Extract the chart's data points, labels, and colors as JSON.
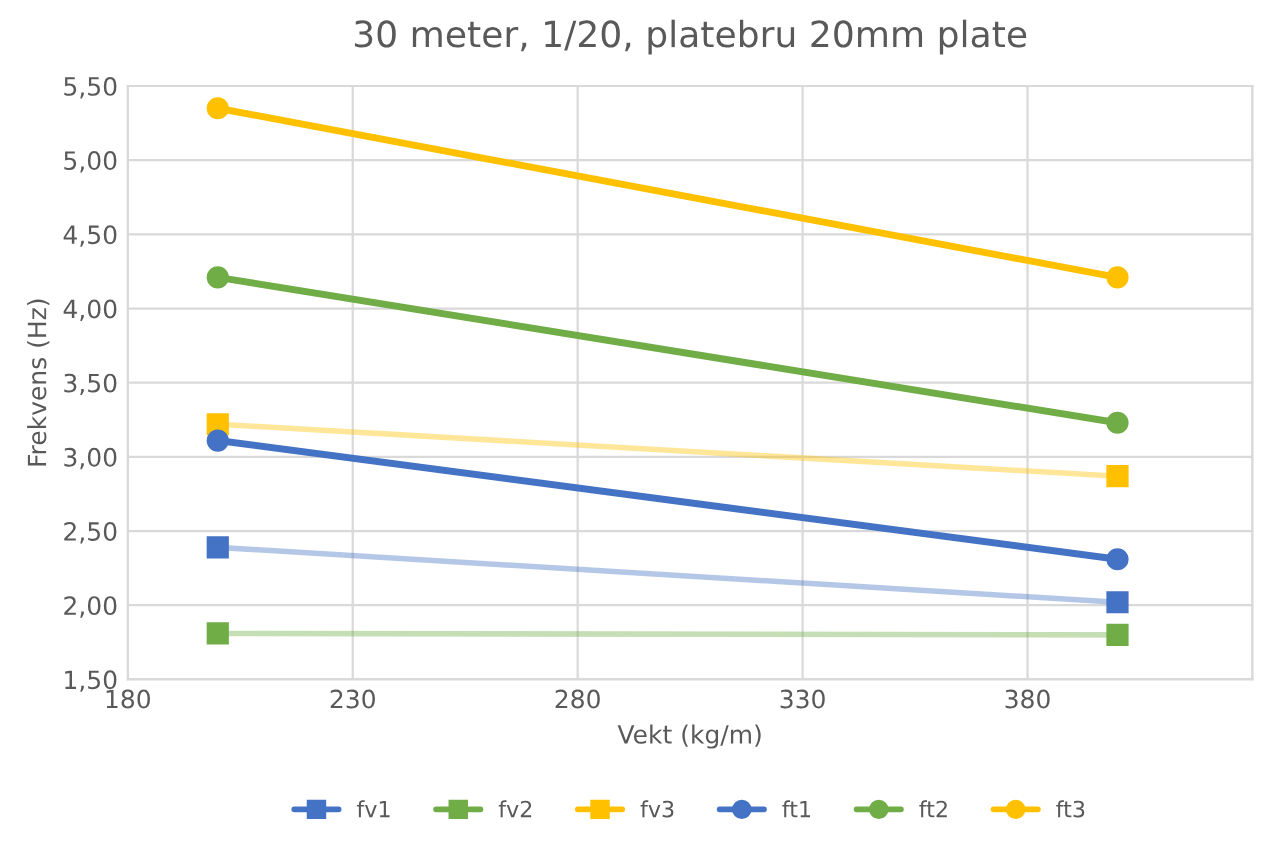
{
  "chart_data": {
    "type": "line",
    "title": "30 meter, 1/20, platebru 20mm plate",
    "xlabel": "Vekt (kg/m)",
    "ylabel": "Frekvens (Hz)",
    "x": [
      200,
      400
    ],
    "series": [
      {
        "name": "fv1",
        "color": "#4472c4",
        "marker": "square",
        "values": [
          2.39,
          2.02
        ]
      },
      {
        "name": "fv2",
        "color": "#70ad47",
        "marker": "square",
        "values": [
          1.81,
          1.8
        ]
      },
      {
        "name": "fv3",
        "color": "#ffc000",
        "marker": "square",
        "values": [
          3.22,
          2.87
        ]
      },
      {
        "name": "ft1",
        "color": "#4472c4",
        "marker": "circle",
        "values": [
          3.11,
          2.31
        ]
      },
      {
        "name": "ft2",
        "color": "#70ad47",
        "marker": "circle",
        "values": [
          4.21,
          3.23
        ]
      },
      {
        "name": "ft3",
        "color": "#ffc000",
        "marker": "circle",
        "values": [
          5.35,
          4.21
        ]
      }
    ],
    "xlim": [
      180,
      430
    ],
    "xticks": [
      180,
      230,
      280,
      330,
      380,
      {
        "value": 430,
        "label": null
      }
    ],
    "ylim": [
      1.5,
      5.5
    ],
    "yticks": [
      {
        "value": 1.5,
        "label": "1,50"
      },
      {
        "value": 2.0,
        "label": "2,00"
      },
      {
        "value": 2.5,
        "label": "2,50"
      },
      {
        "value": 3.0,
        "label": "3,00"
      },
      {
        "value": 3.5,
        "label": "3,50"
      },
      {
        "value": 4.0,
        "label": "4,00"
      },
      {
        "value": 4.5,
        "label": "4,50"
      },
      {
        "value": 5.0,
        "label": "5,00"
      },
      {
        "value": 5.5,
        "label": "5,50"
      }
    ],
    "grid": true,
    "legend": "bottom"
  }
}
